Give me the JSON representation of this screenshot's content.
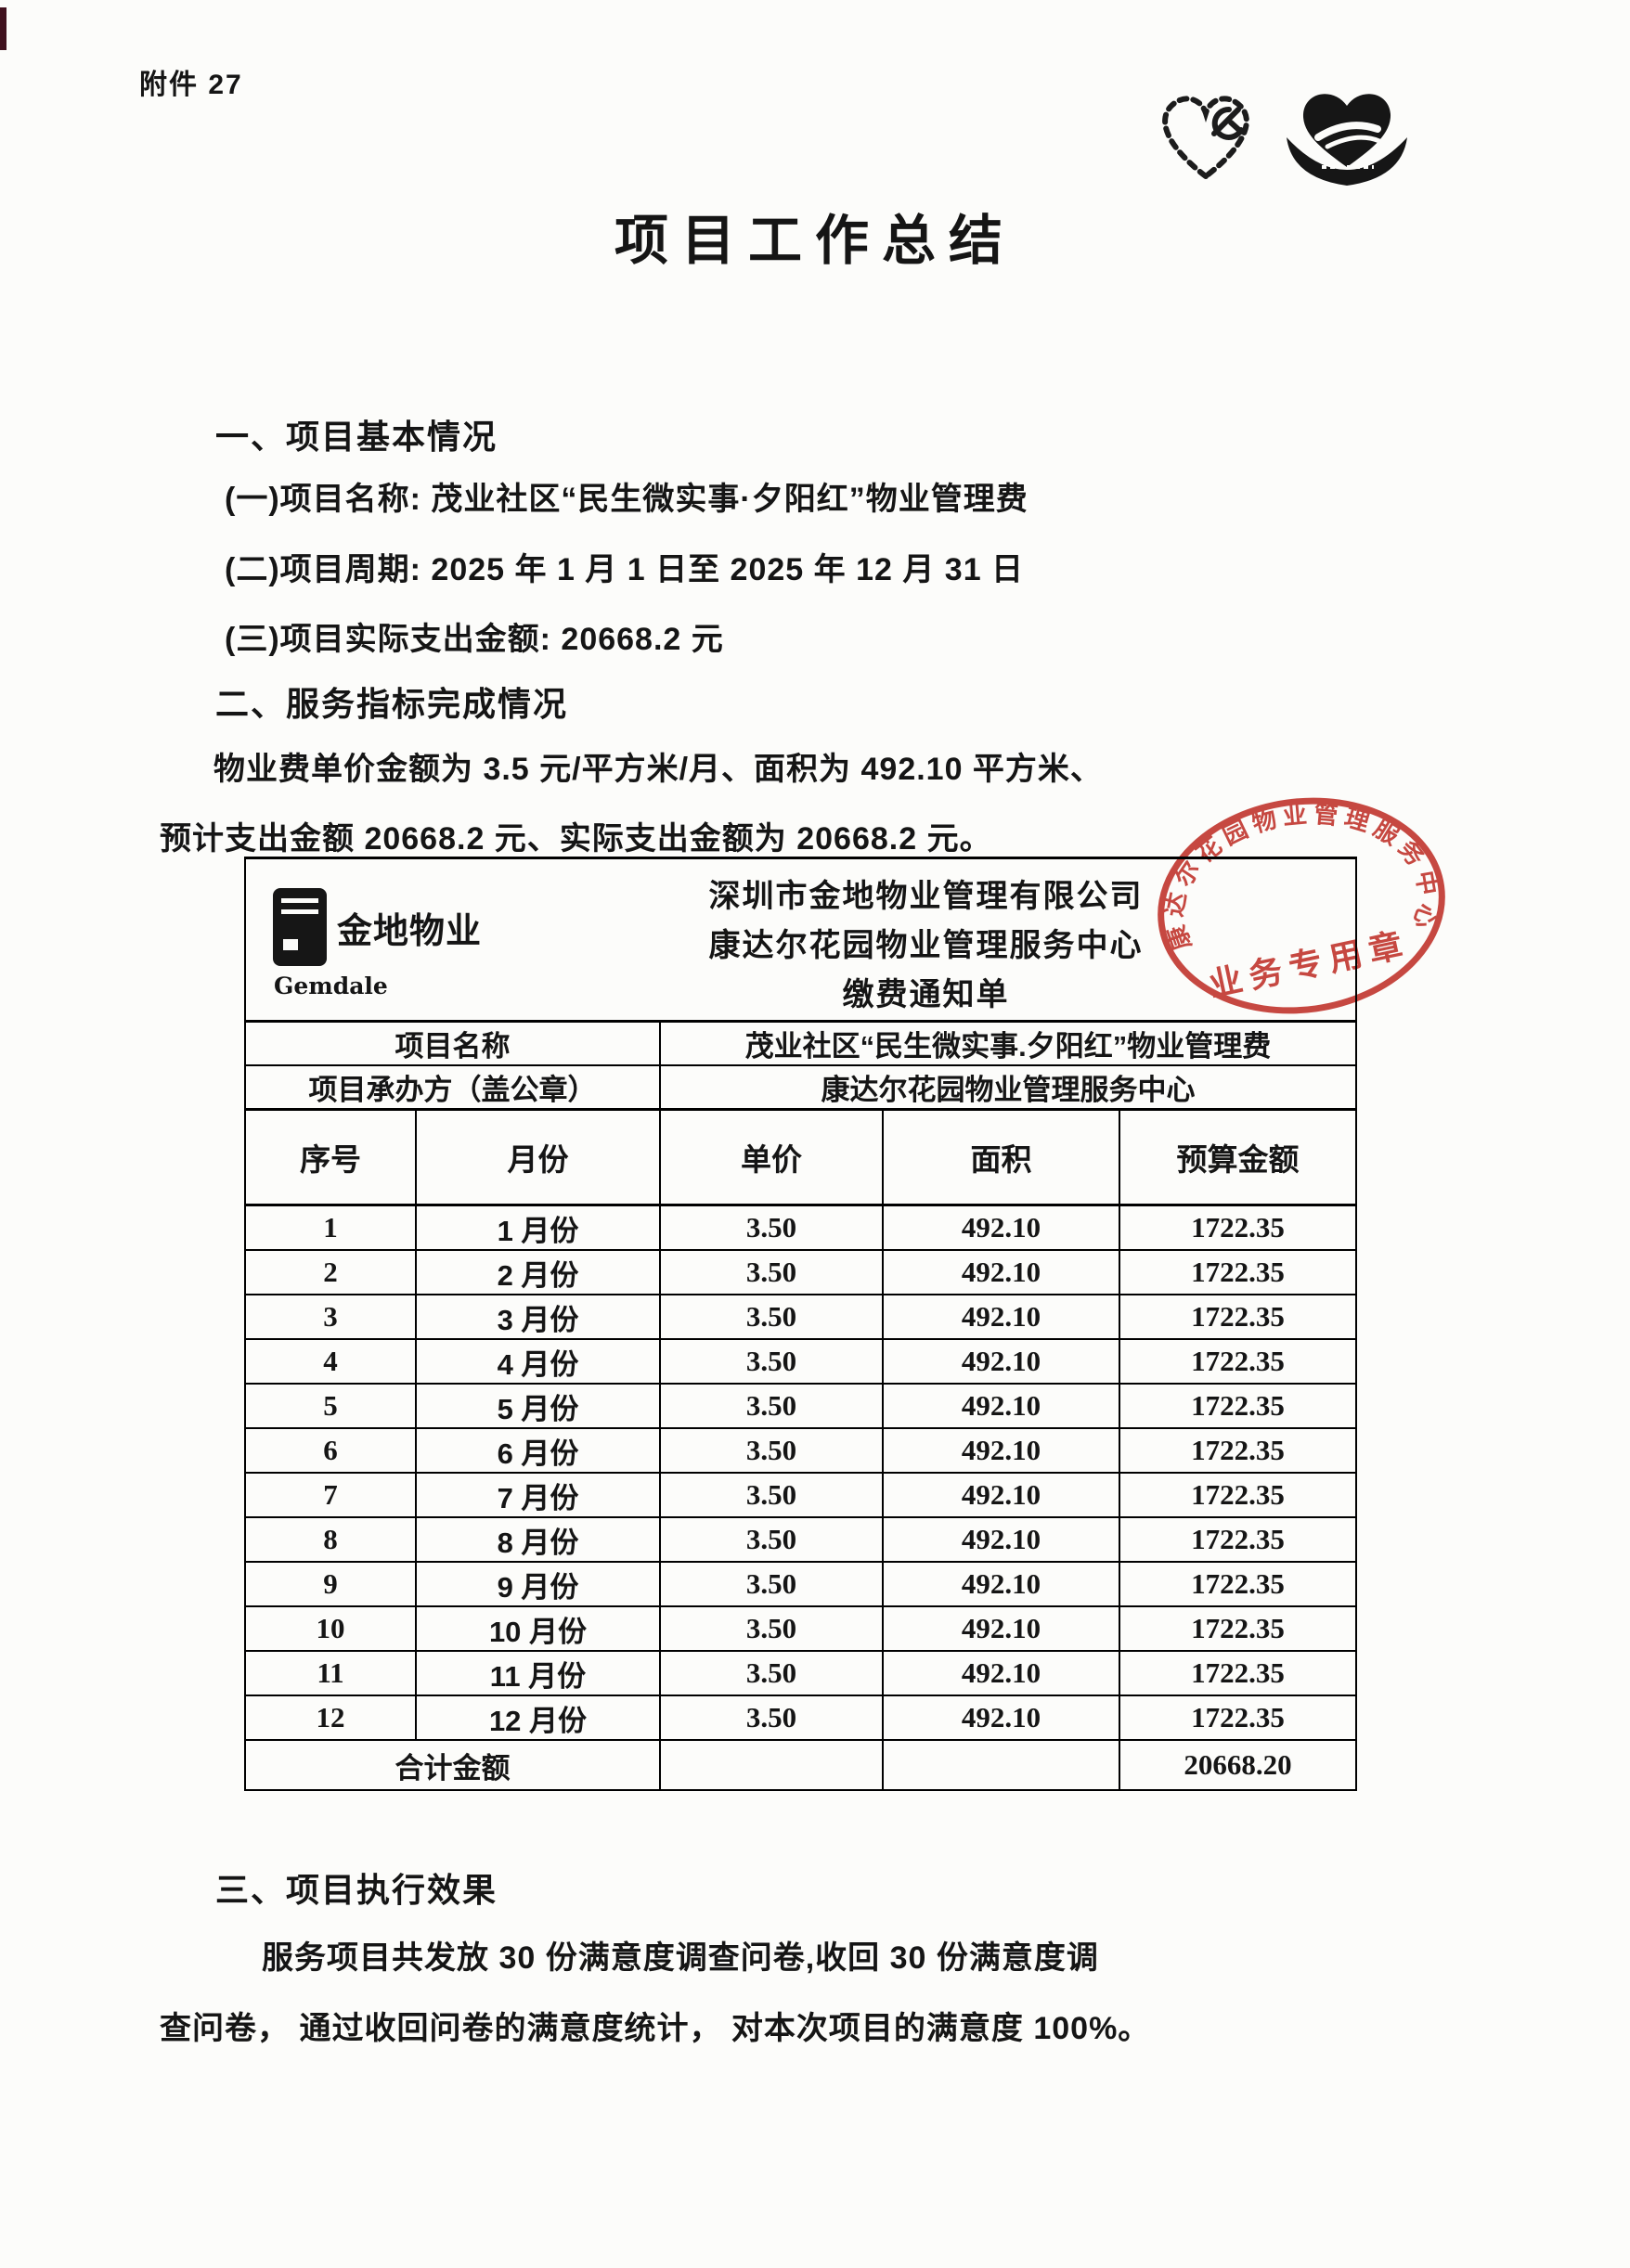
{
  "page": {
    "attachment_label": "附件 27",
    "title": "项目工作总结"
  },
  "sections": {
    "s1": {
      "heading": "一、项目基本情况",
      "items": [
        "(一)项目名称: 茂业社区“民生微实事·夕阳红”物业管理费",
        "(二)项目周期: 2025 年 1 月 1 日至 2025 年 12 月 31 日",
        "(三)项目实际支出金额: 20668.2 元"
      ]
    },
    "s2": {
      "heading": "二、服务指标完成情况",
      "para_line1": "物业费单价金额为 3.5 元/平方米/月、面积为 492.10 平方米、",
      "para_line2": "预计支出金额 20668.2 元、实际支出金额为 20668.2 元。"
    },
    "s3": {
      "heading": "三、项目执行效果",
      "para_line1": "服务项目共发放 30 份满意度调查问卷,收回 30 份满意度调",
      "para_line2": "查问卷， 通过收回问卷的满意度统计， 对本次项目的满意度 100%。"
    }
  },
  "notice_table": {
    "logo": {
      "name": "金地物业",
      "sub": "Gemdale"
    },
    "header_lines": [
      "深圳市金地物业管理有限公司",
      "康达尔花园物业管理服务中心",
      "缴费通知单"
    ],
    "info_rows": [
      {
        "label": "项目名称",
        "value": "茂业社区“民生微实事.夕阳红”物业管理费"
      },
      {
        "label": "项目承办方（盖公章）",
        "value": "康达尔花园物业管理服务中心"
      }
    ],
    "columns": [
      "序号",
      "月份",
      "单价",
      "面积",
      "预算金额"
    ],
    "rows": [
      {
        "no": "1",
        "month": "1 月份",
        "price": "3.50",
        "area": "492.10",
        "amount": "1722.35"
      },
      {
        "no": "2",
        "month": "2 月份",
        "price": "3.50",
        "area": "492.10",
        "amount": "1722.35"
      },
      {
        "no": "3",
        "month": "3 月份",
        "price": "3.50",
        "area": "492.10",
        "amount": "1722.35"
      },
      {
        "no": "4",
        "month": "4 月份",
        "price": "3.50",
        "area": "492.10",
        "amount": "1722.35"
      },
      {
        "no": "5",
        "month": "5 月份",
        "price": "3.50",
        "area": "492.10",
        "amount": "1722.35"
      },
      {
        "no": "6",
        "month": "6 月份",
        "price": "3.50",
        "area": "492.10",
        "amount": "1722.35"
      },
      {
        "no": "7",
        "month": "7 月份",
        "price": "3.50",
        "area": "492.10",
        "amount": "1722.35"
      },
      {
        "no": "8",
        "month": "8 月份",
        "price": "3.50",
        "area": "492.10",
        "amount": "1722.35"
      },
      {
        "no": "9",
        "month": "9 月份",
        "price": "3.50",
        "area": "492.10",
        "amount": "1722.35"
      },
      {
        "no": "10",
        "month": "10 月份",
        "price": "3.50",
        "area": "492.10",
        "amount": "1722.35"
      },
      {
        "no": "11",
        "month": "11 月份",
        "price": "3.50",
        "area": "492.10",
        "amount": "1722.35"
      },
      {
        "no": "12",
        "month": "12 月份",
        "price": "3.50",
        "area": "492.10",
        "amount": "1722.35"
      }
    ],
    "total_label": "合计金额",
    "total_value": "20668.20"
  },
  "stamp": {
    "ring_text": "康达尔花园物业管理服务中心",
    "center_text": "业务专用章",
    "color": "#c23028"
  }
}
